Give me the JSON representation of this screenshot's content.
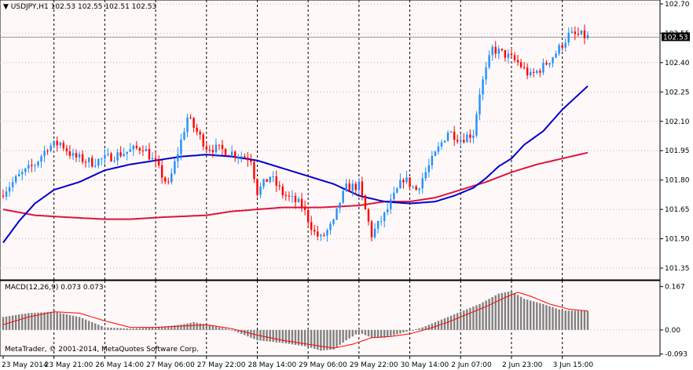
{
  "header": {
    "symbol_info": "USDJPY,H1  102.53 102.55 102.51 102.53",
    "collapse_icon": "triangle-down-icon"
  },
  "macd_panel": {
    "title": "MACD(12,26,9) 0.073 0.073"
  },
  "footer": {
    "copyright": "MetaTrader, © 2001-2014, MetaQuotes Software Corp."
  },
  "colors": {
    "background": "#FFFFFF",
    "plot_bg": "#FFF8F8",
    "bull_candle": "#1E90FF",
    "bear_candle": "#FF0000",
    "fast_ma": "#0000CD",
    "slow_ma": "#DC143C",
    "macd_histogram": "#808080",
    "macd_signal": "#FF0000",
    "price_tag_bg": "#000000",
    "price_tag_text": "#FFFFFF"
  },
  "chart_data": [
    {
      "type": "candlestick",
      "symbol": "USDJPY",
      "timeframe": "H1",
      "ylim": [
        101.29,
        102.72
      ],
      "y_ticks": [
        "102.70",
        "102.55",
        "102.40",
        "102.25",
        "102.10",
        "101.95",
        "101.80",
        "101.65",
        "101.50",
        "101.35"
      ],
      "y_tick_values": [
        102.7,
        102.55,
        102.4,
        102.25,
        102.1,
        101.95,
        101.8,
        101.65,
        101.5,
        101.35
      ],
      "x_ticks": [
        "23 May 2014",
        "23 May 21:00",
        "26 May 14:00",
        "27 May 06:00",
        "27 May 22:00",
        "28 May 14:00",
        "29 May 06:00",
        "29 May 22:00",
        "30 May 14:00",
        "2 Jun 07:00",
        "2 Jun 23:00",
        "3 Jun 15:00"
      ],
      "x_tick_bars": [
        0,
        16,
        32,
        48,
        64,
        80,
        96,
        112,
        128,
        144,
        160,
        176
      ],
      "bar_count": 185,
      "current_price": "102.53",
      "grid": true,
      "close_anchors": [
        [
          0,
          101.74
        ],
        [
          5,
          101.82
        ],
        [
          10,
          101.88
        ],
        [
          14,
          101.97
        ],
        [
          18,
          101.99
        ],
        [
          22,
          101.92
        ],
        [
          28,
          101.89
        ],
        [
          32,
          101.91
        ],
        [
          38,
          101.94
        ],
        [
          44,
          101.97
        ],
        [
          48,
          101.88
        ],
        [
          52,
          101.77
        ],
        [
          56,
          102.0
        ],
        [
          58,
          102.12
        ],
        [
          60,
          102.07
        ],
        [
          64,
          101.97
        ],
        [
          70,
          101.95
        ],
        [
          74,
          101.93
        ],
        [
          78,
          101.91
        ],
        [
          80,
          101.74
        ],
        [
          84,
          101.82
        ],
        [
          88,
          101.73
        ],
        [
          94,
          101.67
        ],
        [
          98,
          101.53
        ],
        [
          100,
          101.5
        ],
        [
          104,
          101.58
        ],
        [
          106,
          101.69
        ],
        [
          108,
          101.76
        ],
        [
          112,
          101.77
        ],
        [
          116,
          101.52
        ],
        [
          120,
          101.62
        ],
        [
          126,
          101.81
        ],
        [
          130,
          101.75
        ],
        [
          132,
          101.81
        ],
        [
          136,
          101.93
        ],
        [
          140,
          102.05
        ],
        [
          144,
          102.01
        ],
        [
          148,
          102.04
        ],
        [
          150,
          102.25
        ],
        [
          154,
          102.47
        ],
        [
          158,
          102.44
        ],
        [
          162,
          102.4
        ],
        [
          166,
          102.33
        ],
        [
          170,
          102.38
        ],
        [
          174,
          102.45
        ],
        [
          178,
          102.54
        ],
        [
          182,
          102.54
        ],
        [
          184,
          102.53
        ]
      ],
      "fast_ma_anchors": [
        [
          0,
          101.48
        ],
        [
          5,
          101.59
        ],
        [
          10,
          101.68
        ],
        [
          16,
          101.75
        ],
        [
          24,
          101.79
        ],
        [
          32,
          101.85
        ],
        [
          40,
          101.88
        ],
        [
          48,
          101.9
        ],
        [
          56,
          101.92
        ],
        [
          64,
          101.93
        ],
        [
          72,
          101.92
        ],
        [
          80,
          101.9
        ],
        [
          88,
          101.86
        ],
        [
          96,
          101.82
        ],
        [
          104,
          101.78
        ],
        [
          112,
          101.72
        ],
        [
          120,
          101.69
        ],
        [
          128,
          101.68
        ],
        [
          136,
          101.69
        ],
        [
          142,
          101.72
        ],
        [
          148,
          101.76
        ],
        [
          152,
          101.81
        ],
        [
          156,
          101.87
        ],
        [
          160,
          101.91
        ],
        [
          164,
          101.98
        ],
        [
          170,
          102.05
        ],
        [
          176,
          102.16
        ],
        [
          182,
          102.25
        ],
        [
          184,
          102.28
        ]
      ],
      "slow_ma_anchors": [
        [
          0,
          101.65
        ],
        [
          10,
          101.62
        ],
        [
          20,
          101.61
        ],
        [
          32,
          101.6
        ],
        [
          40,
          101.6
        ],
        [
          50,
          101.61
        ],
        [
          64,
          101.62
        ],
        [
          72,
          101.64
        ],
        [
          88,
          101.66
        ],
        [
          100,
          101.66
        ],
        [
          112,
          101.67
        ],
        [
          120,
          101.69
        ],
        [
          128,
          101.69
        ],
        [
          136,
          101.71
        ],
        [
          144,
          101.75
        ],
        [
          152,
          101.79
        ],
        [
          160,
          101.84
        ],
        [
          168,
          101.88
        ],
        [
          176,
          101.91
        ],
        [
          184,
          101.94
        ]
      ]
    },
    {
      "type": "bar",
      "name": "MACD(12,26,9)",
      "ylim": [
        -0.1,
        0.19
      ],
      "y_ticks": [
        "0.167",
        "0.00",
        "-0.093"
      ],
      "y_tick_values": [
        0.167,
        0.0,
        -0.093
      ],
      "macd_value": "0.073",
      "signal_value": "0.073",
      "histogram_anchors": [
        [
          0,
          0.05
        ],
        [
          8,
          0.065
        ],
        [
          16,
          0.07
        ],
        [
          24,
          0.05
        ],
        [
          32,
          0.01
        ],
        [
          40,
          0.005
        ],
        [
          48,
          0.01
        ],
        [
          56,
          0.02
        ],
        [
          60,
          0.03
        ],
        [
          64,
          0.02
        ],
        [
          72,
          0.0
        ],
        [
          80,
          -0.04
        ],
        [
          88,
          -0.05
        ],
        [
          96,
          -0.065
        ],
        [
          100,
          -0.08
        ],
        [
          104,
          -0.075
        ],
        [
          108,
          -0.04
        ],
        [
          112,
          -0.01
        ],
        [
          116,
          -0.03
        ],
        [
          120,
          -0.03
        ],
        [
          126,
          -0.01
        ],
        [
          132,
          0.01
        ],
        [
          138,
          0.04
        ],
        [
          144,
          0.07
        ],
        [
          150,
          0.1
        ],
        [
          156,
          0.14
        ],
        [
          160,
          0.15
        ],
        [
          164,
          0.12
        ],
        [
          170,
          0.1
        ],
        [
          176,
          0.075
        ],
        [
          184,
          0.073
        ]
      ],
      "signal_anchors": [
        [
          0,
          0.02
        ],
        [
          8,
          0.05
        ],
        [
          16,
          0.07
        ],
        [
          24,
          0.065
        ],
        [
          32,
          0.035
        ],
        [
          40,
          0.01
        ],
        [
          48,
          0.01
        ],
        [
          56,
          0.015
        ],
        [
          64,
          0.02
        ],
        [
          72,
          0.005
        ],
        [
          80,
          -0.02
        ],
        [
          88,
          -0.04
        ],
        [
          96,
          -0.055
        ],
        [
          104,
          -0.07
        ],
        [
          110,
          -0.055
        ],
        [
          116,
          -0.03
        ],
        [
          122,
          -0.025
        ],
        [
          128,
          -0.015
        ],
        [
          134,
          0.005
        ],
        [
          140,
          0.03
        ],
        [
          146,
          0.06
        ],
        [
          152,
          0.09
        ],
        [
          158,
          0.125
        ],
        [
          162,
          0.145
        ],
        [
          166,
          0.13
        ],
        [
          172,
          0.1
        ],
        [
          178,
          0.08
        ],
        [
          184,
          0.073
        ]
      ]
    }
  ]
}
